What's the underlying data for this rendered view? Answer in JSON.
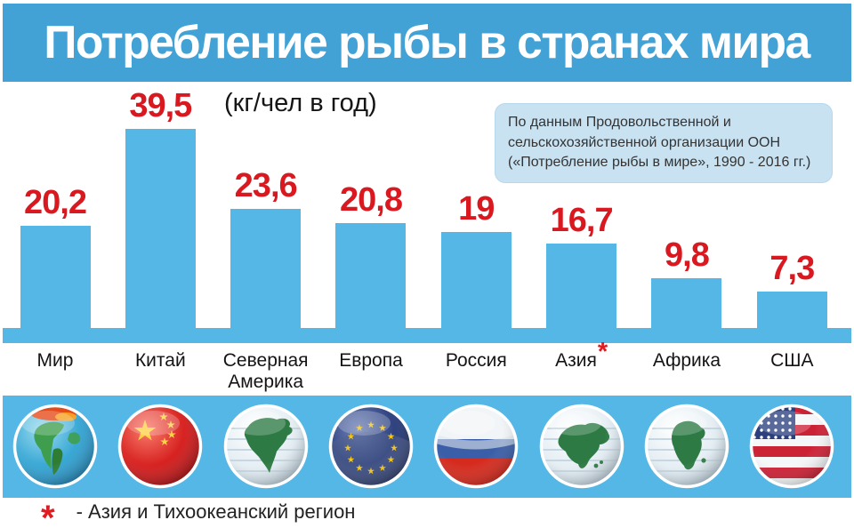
{
  "title": "Потребление рыбы в странах мира",
  "subtitle": "(кг/чел в год)",
  "source_note": {
    "lines": [
      "По данным Продовольственной и",
      "сельскохозяйственной организации ООН",
      "(«Потребление рыбы в мире», 1990 - 2016 гг.)"
    ]
  },
  "footnote": {
    "marker": "*",
    "text": "- Азия и Тихоокеанский регион"
  },
  "colors": {
    "header_blue": "#42a2d5",
    "bar_blue": "#55b7e6",
    "band_blue": "#55b7e6",
    "value_red": "#d9191f",
    "accent_red": "#e01b22",
    "source_box_bg": "#c8e2f2",
    "title_text": "#ffffff",
    "label_text": "#141414"
  },
  "chart_data": {
    "type": "bar",
    "title": "Потребление рыбы в странах мира",
    "unit_label": "(кг/чел в год)",
    "categories": [
      "Мир",
      "Китай",
      "Северная Америка",
      "Европа",
      "Россия",
      "Азия",
      "Африка",
      "США"
    ],
    "values": [
      20.2,
      39.5,
      23.6,
      20.8,
      19,
      16.7,
      9.8,
      7.3
    ],
    "value_labels": [
      "20,2",
      "39,5",
      "23,6",
      "20,8",
      "19",
      "16,7",
      "9,8",
      "7,3"
    ],
    "footnote_category": "Азия",
    "footnote_marker": "*",
    "icons": [
      "world-globe-icon",
      "china-flag-globe-icon",
      "north-america-globe-icon",
      "eu-flag-globe-icon",
      "russia-flag-globe-icon",
      "asia-globe-icon",
      "africa-globe-icon",
      "usa-flag-globe-icon"
    ],
    "ylim": [
      0,
      40
    ],
    "grid": false,
    "legend": false,
    "xlabel": "",
    "ylabel": "кг/чел в год"
  }
}
